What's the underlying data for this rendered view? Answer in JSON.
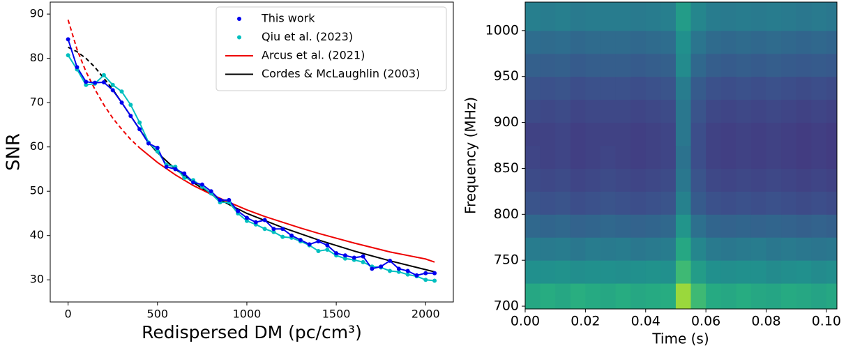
{
  "chart_data": [
    {
      "type": "line",
      "xlabel": "Redispersed DM (pc/cm³)",
      "ylabel": "SNR",
      "xlim": [
        -100,
        2155
      ],
      "ylim": [
        25,
        92.7
      ],
      "xticks": [
        0,
        500,
        1000,
        1500,
        2000
      ],
      "yticks": [
        30,
        40,
        50,
        60,
        70,
        80,
        90
      ],
      "legend": "upper right",
      "series": [
        {
          "name": "This work",
          "color": "#0000ee",
          "marker": true,
          "linestyle": "solid",
          "x": [
            0,
            50,
            100,
            150,
            200,
            250,
            300,
            350,
            400,
            450,
            500,
            550,
            600,
            650,
            700,
            750,
            800,
            850,
            900,
            950,
            1000,
            1050,
            1100,
            1150,
            1200,
            1250,
            1300,
            1350,
            1400,
            1450,
            1500,
            1550,
            1600,
            1650,
            1700,
            1750,
            1800,
            1850,
            1900,
            1950,
            2000,
            2050
          ],
          "values": [
            84.3,
            78,
            74.7,
            74.5,
            74.6,
            72.8,
            70,
            67,
            64,
            60.8,
            59.8,
            55.5,
            55,
            54,
            52,
            51.5,
            50,
            48,
            48,
            45.5,
            44,
            43,
            43.5,
            41.5,
            41.5,
            40,
            39,
            38,
            38.7,
            37.8,
            36,
            35.5,
            35,
            35.3,
            32.5,
            33,
            34.3,
            32.5,
            32,
            31,
            31.5,
            31.5
          ]
        },
        {
          "name": "Qiu et al. (2023)",
          "color": "#00bfbf",
          "marker": true,
          "linestyle": "solid",
          "x": [
            0,
            50,
            100,
            150,
            200,
            250,
            300,
            350,
            400,
            450,
            500,
            550,
            600,
            650,
            700,
            750,
            800,
            850,
            900,
            950,
            1000,
            1050,
            1100,
            1150,
            1200,
            1250,
            1300,
            1350,
            1400,
            1450,
            1500,
            1550,
            1600,
            1650,
            1700,
            1750,
            1800,
            1850,
            1900,
            1950,
            2000,
            2050
          ],
          "values": [
            80.7,
            77.5,
            74,
            74.3,
            76.2,
            74,
            72.5,
            69.5,
            65.5,
            61,
            59,
            56,
            55.5,
            53,
            52.5,
            51,
            49.5,
            47.5,
            47.5,
            45,
            43.3,
            42.5,
            41.5,
            40.8,
            39.7,
            39.5,
            38.7,
            37.8,
            36.5,
            36.8,
            35.5,
            34.8,
            34.5,
            34,
            33,
            32.8,
            32,
            31.8,
            31.2,
            30.8,
            30,
            29.8
          ]
        },
        {
          "name": "Arcus et al. (2021)",
          "color": "#ee0000",
          "marker": false,
          "linestyle": "solid",
          "x": [
            400,
            500,
            600,
            700,
            800,
            900,
            1000,
            1100,
            1200,
            1300,
            1400,
            1500,
            1600,
            1700,
            1800,
            1900,
            2000,
            2050
          ],
          "values": [
            59.8,
            56.5,
            53.7,
            51.3,
            49.3,
            47.5,
            45.8,
            44.3,
            43,
            41.7,
            40.5,
            39.4,
            38.3,
            37.3,
            36.3,
            35.5,
            34.7,
            34.0
          ]
        },
        {
          "name": "Cordes & McLaughlin (2003)",
          "color": "#000000",
          "marker": false,
          "linestyle": "solid",
          "x": [
            250,
            300,
            350,
            400,
            450,
            500,
            600,
            700,
            800,
            900,
            1000,
            1200,
            1400,
            1600,
            1800,
            2000,
            2050
          ],
          "values": [
            73,
            70,
            67,
            64,
            61,
            58.7,
            55,
            52,
            49.3,
            47,
            45,
            41.8,
            39,
            36.5,
            34.3,
            32.3,
            31.8
          ]
        },
        {
          "color": "#ee0000",
          "marker": false,
          "linestyle": "dashed",
          "x": [
            0,
            50,
            100,
            150,
            200,
            250,
            300,
            350,
            400
          ],
          "values": [
            88.7,
            82,
            77,
            73,
            69.5,
            66.5,
            64,
            61.7,
            59.8
          ]
        },
        {
          "color": "#000000",
          "marker": false,
          "linestyle": "dashed",
          "x": [
            0,
            50,
            100,
            150,
            200,
            250
          ],
          "values": [
            82.5,
            81.5,
            80,
            78,
            75.5,
            73
          ]
        }
      ]
    },
    {
      "type": "heatmap",
      "xlabel": "Time (s)",
      "ylabel": "Frequency (MHz)",
      "colormap": "viridis",
      "xlim": [
        0,
        0.1035
      ],
      "ylim": [
        697,
        1031
      ],
      "zlim": [
        0,
        1
      ],
      "xticks": [
        {
          "value": 0,
          "label": "0.00"
        },
        {
          "value": 0.02,
          "label": "0.02"
        },
        {
          "value": 0.04,
          "label": "0.04"
        },
        {
          "value": 0.06,
          "label": "0.06"
        },
        {
          "value": 0.08,
          "label": "0.08"
        },
        {
          "value": 0.1,
          "label": "0.10"
        }
      ],
      "yticks": [
        700,
        750,
        800,
        850,
        900,
        950,
        1000
      ],
      "x_edges": [
        0,
        0.005,
        0.01,
        0.015,
        0.02,
        0.025,
        0.03,
        0.035,
        0.04,
        0.045,
        0.05,
        0.055,
        0.06,
        0.065,
        0.07,
        0.075,
        0.08,
        0.085,
        0.09,
        0.095,
        0.1,
        0.1035
      ],
      "y_edges": [
        697,
        725,
        750,
        775,
        800,
        825,
        850,
        875,
        900,
        925,
        950,
        975,
        1000,
        1031
      ],
      "z": [
        [
          0.6,
          0.62,
          0.6,
          0.63,
          0.61,
          0.6,
          0.62,
          0.6,
          0.61,
          0.62,
          0.85,
          0.68,
          0.61,
          0.6,
          0.62,
          0.6,
          0.59,
          0.61,
          0.6,
          0.58,
          0.6
        ],
        [
          0.5,
          0.5,
          0.51,
          0.49,
          0.5,
          0.5,
          0.49,
          0.5,
          0.51,
          0.5,
          0.68,
          0.55,
          0.5,
          0.49,
          0.5,
          0.5,
          0.48,
          0.49,
          0.5,
          0.48,
          0.49
        ],
        [
          0.42,
          0.41,
          0.42,
          0.4,
          0.42,
          0.41,
          0.42,
          0.4,
          0.41,
          0.42,
          0.6,
          0.46,
          0.41,
          0.4,
          0.41,
          0.42,
          0.4,
          0.41,
          0.4,
          0.39,
          0.4
        ],
        [
          0.34,
          0.33,
          0.34,
          0.32,
          0.33,
          0.34,
          0.33,
          0.32,
          0.33,
          0.34,
          0.52,
          0.37,
          0.33,
          0.32,
          0.33,
          0.32,
          0.33,
          0.32,
          0.31,
          0.32,
          0.31
        ],
        [
          0.26,
          0.25,
          0.26,
          0.24,
          0.25,
          0.26,
          0.25,
          0.24,
          0.25,
          0.26,
          0.44,
          0.29,
          0.25,
          0.24,
          0.25,
          0.24,
          0.25,
          0.24,
          0.23,
          0.24,
          0.23
        ],
        [
          0.23,
          0.22,
          0.23,
          0.21,
          0.22,
          0.23,
          0.22,
          0.21,
          0.22,
          0.23,
          0.4,
          0.26,
          0.22,
          0.21,
          0.22,
          0.21,
          0.22,
          0.21,
          0.2,
          0.21,
          0.2
        ],
        [
          0.21,
          0.2,
          0.21,
          0.19,
          0.2,
          0.21,
          0.2,
          0.19,
          0.2,
          0.21,
          0.38,
          0.24,
          0.2,
          0.19,
          0.2,
          0.19,
          0.2,
          0.19,
          0.18,
          0.19,
          0.18
        ],
        [
          0.2,
          0.2,
          0.21,
          0.19,
          0.2,
          0.2,
          0.2,
          0.19,
          0.2,
          0.21,
          0.4,
          0.24,
          0.2,
          0.19,
          0.2,
          0.19,
          0.2,
          0.19,
          0.18,
          0.19,
          0.18
        ],
        [
          0.23,
          0.22,
          0.23,
          0.21,
          0.22,
          0.22,
          0.22,
          0.21,
          0.22,
          0.23,
          0.4,
          0.26,
          0.22,
          0.21,
          0.22,
          0.21,
          0.22,
          0.21,
          0.2,
          0.21,
          0.2
        ],
        [
          0.26,
          0.25,
          0.26,
          0.24,
          0.25,
          0.25,
          0.25,
          0.24,
          0.25,
          0.26,
          0.42,
          0.29,
          0.25,
          0.24,
          0.25,
          0.24,
          0.25,
          0.24,
          0.23,
          0.24,
          0.23
        ],
        [
          0.31,
          0.3,
          0.31,
          0.29,
          0.3,
          0.3,
          0.3,
          0.29,
          0.3,
          0.31,
          0.48,
          0.34,
          0.3,
          0.29,
          0.3,
          0.29,
          0.3,
          0.29,
          0.28,
          0.29,
          0.28
        ],
        [
          0.36,
          0.35,
          0.36,
          0.34,
          0.35,
          0.35,
          0.35,
          0.34,
          0.35,
          0.36,
          0.5,
          0.39,
          0.35,
          0.34,
          0.35,
          0.34,
          0.35,
          0.34,
          0.33,
          0.34,
          0.33
        ],
        [
          0.43,
          0.42,
          0.43,
          0.41,
          0.42,
          0.42,
          0.42,
          0.41,
          0.42,
          0.43,
          0.55,
          0.46,
          0.42,
          0.41,
          0.42,
          0.41,
          0.42,
          0.41,
          0.4,
          0.41,
          0.4
        ]
      ]
    }
  ]
}
